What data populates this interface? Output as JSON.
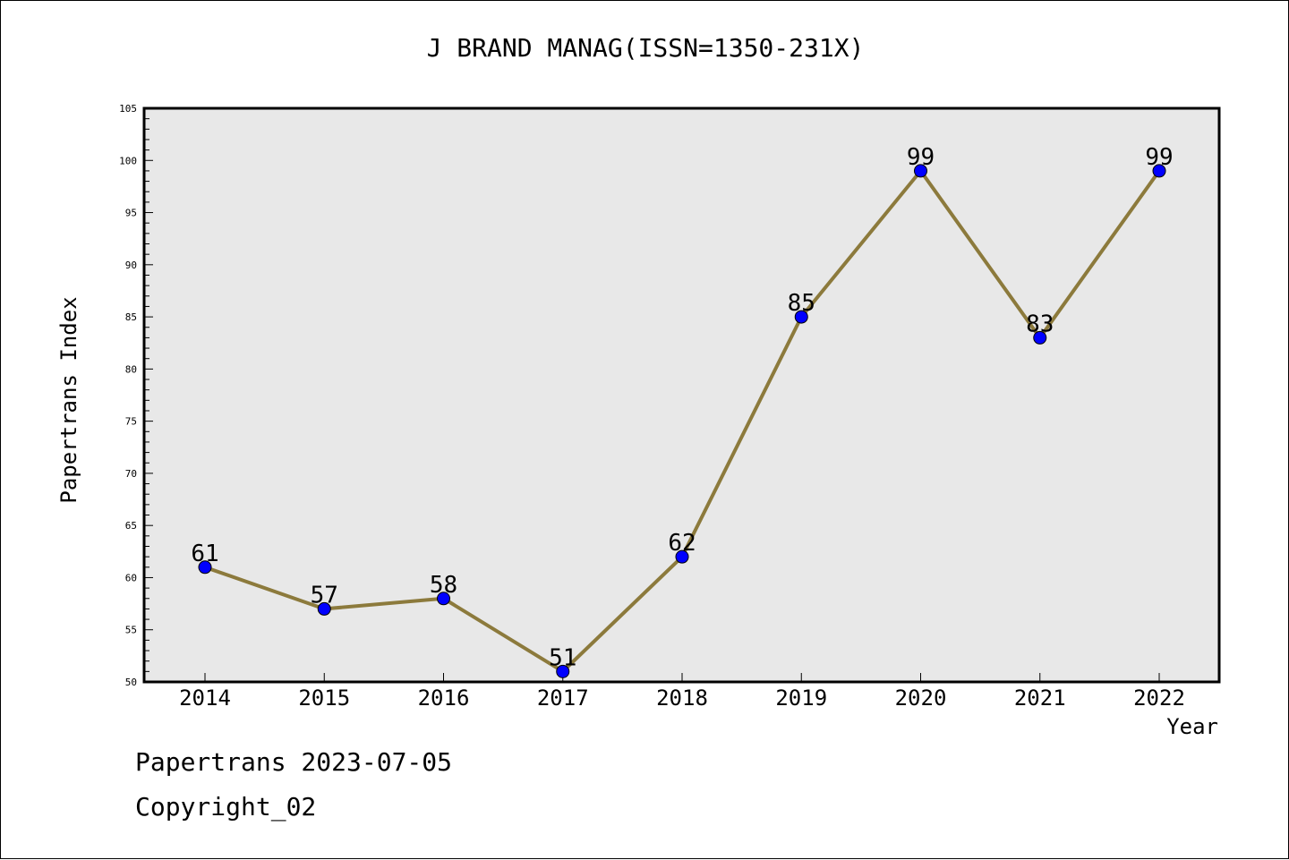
{
  "chart_data": {
    "type": "line",
    "title": "J BRAND MANAG(ISSN=1350-231X)",
    "xlabel": "Year",
    "ylabel": "Papertrans Index",
    "categories": [
      "2014",
      "2015",
      "2016",
      "2017",
      "2018",
      "2019",
      "2020",
      "2021",
      "2022"
    ],
    "values": [
      61,
      57,
      58,
      51,
      62,
      85,
      99,
      83,
      99
    ],
    "ylim": [
      50,
      105
    ],
    "yticks": [
      50,
      55,
      60,
      65,
      70,
      75,
      80,
      85,
      90,
      95,
      100,
      105
    ],
    "grid": false,
    "data_labels": true,
    "colors": {
      "line": "#8c7a3c",
      "marker": "#0000ff",
      "plot_background": "#e8e8e8"
    }
  },
  "footer": {
    "line1": "Papertrans 2023-07-05",
    "line2": "Copyright_02"
  }
}
